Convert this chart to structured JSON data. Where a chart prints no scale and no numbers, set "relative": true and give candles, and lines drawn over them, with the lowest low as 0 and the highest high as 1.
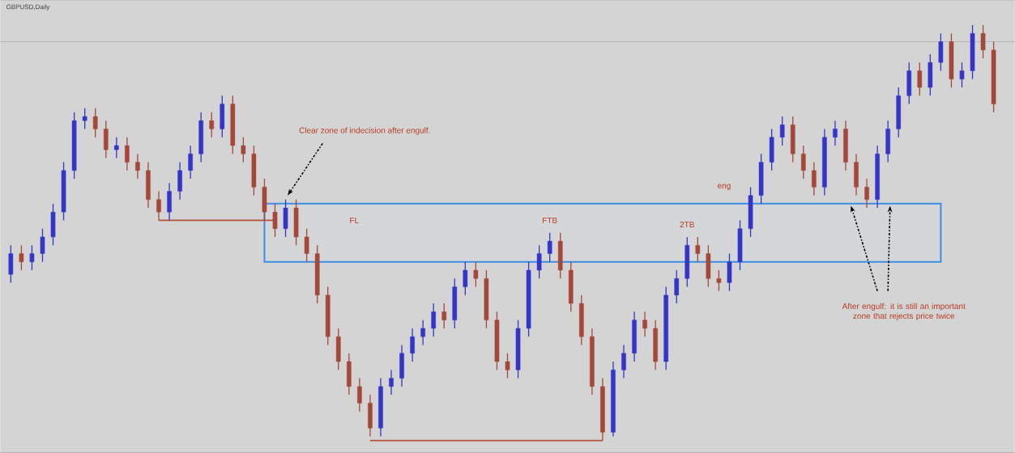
{
  "chart_data": {
    "type": "candlestick",
    "title": "GBPUSD,Daily",
    "relative": true,
    "categories": [
      null,
      null,
      null,
      null,
      null,
      null,
      null,
      null,
      null,
      null,
      null,
      null,
      null,
      null,
      null,
      null,
      null,
      null,
      null,
      null,
      null,
      null,
      null,
      null,
      null,
      null,
      null,
      null,
      null,
      null,
      null,
      null,
      null,
      null,
      null,
      null,
      null,
      null,
      null,
      null,
      null,
      null,
      null,
      null,
      null,
      null,
      null,
      null,
      null,
      null,
      null,
      null,
      null,
      null,
      null,
      null,
      null,
      null,
      null,
      null,
      null,
      null,
      null,
      null,
      null,
      null,
      null,
      null,
      null,
      null,
      null,
      null,
      null,
      null,
      null,
      null,
      null,
      null,
      null,
      null,
      null,
      null,
      null,
      null,
      null,
      null,
      null,
      null,
      null,
      null,
      null,
      null,
      null,
      null
    ],
    "ohlc": [
      [
        0.4,
        0.47,
        0.38,
        0.45
      ],
      [
        0.45,
        0.47,
        0.41,
        0.43
      ],
      [
        0.43,
        0.47,
        0.41,
        0.45
      ],
      [
        0.45,
        0.51,
        0.43,
        0.49
      ],
      [
        0.49,
        0.57,
        0.47,
        0.55
      ],
      [
        0.55,
        0.67,
        0.53,
        0.65
      ],
      [
        0.65,
        0.79,
        0.63,
        0.77
      ],
      [
        0.77,
        0.8,
        0.75,
        0.78
      ],
      [
        0.78,
        0.8,
        0.73,
        0.75
      ],
      [
        0.75,
        0.77,
        0.68,
        0.7
      ],
      [
        0.7,
        0.73,
        0.68,
        0.71
      ],
      [
        0.71,
        0.73,
        0.65,
        0.67
      ],
      [
        0.67,
        0.69,
        0.63,
        0.65
      ],
      [
        0.65,
        0.67,
        0.56,
        0.58
      ],
      [
        0.58,
        0.6,
        0.53,
        0.55
      ],
      [
        0.55,
        0.62,
        0.53,
        0.6
      ],
      [
        0.6,
        0.67,
        0.58,
        0.65
      ],
      [
        0.65,
        0.71,
        0.63,
        0.69
      ],
      [
        0.69,
        0.79,
        0.67,
        0.77
      ],
      [
        0.77,
        0.79,
        0.73,
        0.75
      ],
      [
        0.75,
        0.83,
        0.73,
        0.81
      ],
      [
        0.81,
        0.83,
        0.69,
        0.71
      ],
      [
        0.71,
        0.73,
        0.67,
        0.69
      ],
      [
        0.69,
        0.71,
        0.59,
        0.61
      ],
      [
        0.61,
        0.63,
        0.53,
        0.55
      ],
      [
        0.55,
        0.57,
        0.49,
        0.51
      ],
      [
        0.51,
        0.58,
        0.49,
        0.56
      ],
      [
        0.56,
        0.58,
        0.47,
        0.49
      ],
      [
        0.49,
        0.51,
        0.43,
        0.45
      ],
      [
        0.45,
        0.47,
        0.33,
        0.35
      ],
      [
        0.35,
        0.37,
        0.23,
        0.25
      ],
      [
        0.25,
        0.27,
        0.17,
        0.19
      ],
      [
        0.19,
        0.21,
        0.11,
        0.13
      ],
      [
        0.13,
        0.15,
        0.07,
        0.09
      ],
      [
        0.09,
        0.11,
        0.01,
        0.03
      ],
      [
        0.03,
        0.15,
        0.01,
        0.13
      ],
      [
        0.13,
        0.17,
        0.11,
        0.15
      ],
      [
        0.15,
        0.23,
        0.13,
        0.21
      ],
      [
        0.21,
        0.27,
        0.19,
        0.25
      ],
      [
        0.25,
        0.29,
        0.23,
        0.27
      ],
      [
        0.27,
        0.33,
        0.25,
        0.31
      ],
      [
        0.31,
        0.33,
        0.27,
        0.29
      ],
      [
        0.29,
        0.39,
        0.27,
        0.37
      ],
      [
        0.37,
        0.43,
        0.35,
        0.41
      ],
      [
        0.41,
        0.43,
        0.37,
        0.39
      ],
      [
        0.39,
        0.41,
        0.27,
        0.29
      ],
      [
        0.29,
        0.31,
        0.17,
        0.19
      ],
      [
        0.19,
        0.21,
        0.15,
        0.17
      ],
      [
        0.17,
        0.29,
        0.15,
        0.27
      ],
      [
        0.27,
        0.43,
        0.25,
        0.41
      ],
      [
        0.41,
        0.47,
        0.39,
        0.45
      ],
      [
        0.45,
        0.5,
        0.43,
        0.48
      ],
      [
        0.48,
        0.5,
        0.39,
        0.41
      ],
      [
        0.41,
        0.43,
        0.31,
        0.33
      ],
      [
        0.33,
        0.35,
        0.23,
        0.25
      ],
      [
        0.25,
        0.27,
        0.11,
        0.13
      ],
      [
        0.13,
        0.15,
        0.0,
        0.02
      ],
      [
        0.02,
        0.19,
        0.01,
        0.17
      ],
      [
        0.17,
        0.23,
        0.15,
        0.21
      ],
      [
        0.21,
        0.31,
        0.19,
        0.29
      ],
      [
        0.29,
        0.31,
        0.25,
        0.27
      ],
      [
        0.27,
        0.29,
        0.17,
        0.19
      ],
      [
        0.19,
        0.37,
        0.17,
        0.35
      ],
      [
        0.35,
        0.41,
        0.33,
        0.39
      ],
      [
        0.39,
        0.49,
        0.37,
        0.47
      ],
      [
        0.47,
        0.49,
        0.43,
        0.45
      ],
      [
        0.45,
        0.47,
        0.37,
        0.39
      ],
      [
        0.39,
        0.41,
        0.36,
        0.38
      ],
      [
        0.38,
        0.45,
        0.36,
        0.43
      ],
      [
        0.43,
        0.53,
        0.41,
        0.51
      ],
      [
        0.51,
        0.61,
        0.49,
        0.59
      ],
      [
        0.59,
        0.69,
        0.57,
        0.67
      ],
      [
        0.67,
        0.75,
        0.65,
        0.73
      ],
      [
        0.73,
        0.78,
        0.71,
        0.76
      ],
      [
        0.76,
        0.78,
        0.67,
        0.69
      ],
      [
        0.69,
        0.71,
        0.63,
        0.65
      ],
      [
        0.65,
        0.67,
        0.59,
        0.61
      ],
      [
        0.61,
        0.75,
        0.59,
        0.73
      ],
      [
        0.73,
        0.77,
        0.71,
        0.75
      ],
      [
        0.75,
        0.77,
        0.65,
        0.67
      ],
      [
        0.67,
        0.69,
        0.59,
        0.61
      ],
      [
        0.61,
        0.63,
        0.56,
        0.58
      ],
      [
        0.58,
        0.71,
        0.56,
        0.69
      ],
      [
        0.69,
        0.77,
        0.67,
        0.75
      ],
      [
        0.75,
        0.85,
        0.73,
        0.83
      ],
      [
        0.83,
        0.91,
        0.81,
        0.89
      ],
      [
        0.89,
        0.91,
        0.83,
        0.85
      ],
      [
        0.85,
        0.93,
        0.83,
        0.91
      ],
      [
        0.91,
        0.98,
        0.89,
        0.96
      ],
      [
        0.96,
        0.98,
        0.85,
        0.87
      ],
      [
        0.87,
        0.91,
        0.85,
        0.89
      ],
      [
        0.89,
        1.0,
        0.87,
        0.98
      ],
      [
        0.98,
        1.0,
        0.92,
        0.94
      ],
      [
        0.94,
        0.96,
        0.79,
        0.81
      ]
    ],
    "series": [
      {
        "type": "line",
        "color": "#b5503c",
        "values": [
          null,
          null,
          null,
          null,
          null,
          null,
          null,
          null,
          null,
          null,
          null,
          null,
          null,
          null,
          0.53,
          0.53,
          0.53,
          0.53,
          0.53,
          0.53,
          0.53,
          0.53,
          0.53,
          0.53,
          0.53,
          0.53,
          null,
          null,
          null,
          null,
          null,
          null,
          null,
          null,
          null,
          null,
          null,
          null,
          null,
          null,
          null,
          null,
          null,
          null,
          null,
          null,
          null,
          null,
          null,
          null,
          null,
          null,
          null,
          null,
          null,
          null,
          null,
          null,
          null,
          null,
          null,
          null,
          null,
          null,
          null,
          null,
          null,
          null,
          null,
          null,
          null,
          null,
          null,
          null,
          null,
          null,
          null,
          null,
          null,
          null,
          null,
          null,
          null,
          null,
          null,
          null,
          null,
          null,
          null,
          null,
          null,
          null,
          null,
          null
        ]
      },
      {
        "type": "line",
        "color": "#b5503c",
        "values": [
          null,
          null,
          null,
          null,
          null,
          null,
          null,
          null,
          null,
          null,
          null,
          null,
          null,
          null,
          null,
          null,
          null,
          null,
          null,
          null,
          null,
          null,
          null,
          null,
          null,
          null,
          null,
          null,
          null,
          null,
          null,
          null,
          null,
          null,
          0,
          0,
          0,
          0,
          0,
          0,
          0,
          0,
          0,
          0,
          0,
          0,
          0,
          0,
          0,
          0,
          0,
          0,
          0,
          0,
          0,
          0,
          0,
          null,
          null,
          null,
          null,
          null,
          null,
          null,
          null,
          null,
          null,
          null,
          null,
          null,
          null,
          null,
          null,
          null,
          null,
          null,
          null,
          null,
          null,
          null,
          null,
          null,
          null,
          null,
          null,
          null,
          null,
          null,
          null,
          null,
          null,
          null,
          null,
          null
        ]
      }
    ],
    "bands": [
      {
        "axis": "y",
        "from": 0.43,
        "to": 0.57,
        "color": "#3b8ee8"
      }
    ],
    "ref_lines": [
      {
        "axis": "y",
        "value": 0.96,
        "color": "#8c8c8c"
      }
    ],
    "annotations": [
      "Clear zone of indecision after engulf.",
      "FL",
      "FTB",
      "2TB",
      "eng",
      "After engulf: it is still an important zone that rejects price twice"
    ]
  }
}
